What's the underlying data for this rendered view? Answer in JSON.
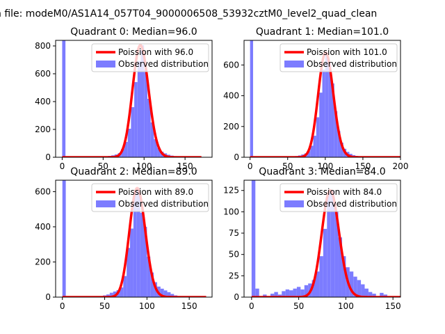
{
  "figure": {
    "suptitle": "n file: modeM0/AS1A14_057T04_9000006508_53932cztM0_level2_quad_clean"
  },
  "colors": {
    "hist": "#7c7cff",
    "poisson": "#ff0000"
  },
  "chart_data": [
    {
      "type": "bar",
      "title": "Quadrant 0: Median=96.0",
      "median": 96.0,
      "poisson_mean": 96.0,
      "x_ticks": [
        0,
        50,
        100,
        150
      ],
      "y_ticks": [
        0,
        200,
        400,
        600,
        800
      ],
      "xlim": [
        -8,
        183
      ],
      "ylim": [
        0,
        840
      ],
      "bin_width": 4,
      "bins": [
        [
          0,
          840
        ],
        [
          52,
          6
        ],
        [
          56,
          10
        ],
        [
          60,
          14
        ],
        [
          64,
          20
        ],
        [
          68,
          30
        ],
        [
          72,
          60
        ],
        [
          76,
          110
        ],
        [
          80,
          205
        ],
        [
          84,
          360
        ],
        [
          88,
          540
        ],
        [
          92,
          690
        ],
        [
          96,
          805
        ],
        [
          100,
          630
        ],
        [
          104,
          420
        ],
        [
          108,
          250
        ],
        [
          112,
          130
        ],
        [
          116,
          68
        ],
        [
          120,
          40
        ],
        [
          124,
          28
        ],
        [
          128,
          18
        ],
        [
          132,
          12
        ],
        [
          136,
          8
        ],
        [
          140,
          5
        ],
        [
          144,
          3
        ]
      ],
      "series": [
        {
          "name": "Poission with 96.0",
          "kind": "line"
        },
        {
          "name": "Observed distribution",
          "kind": "bar"
        }
      ],
      "legend": "top-right"
    },
    {
      "type": "bar",
      "title": "Quadrant 1: Median=101.0",
      "median": 101.0,
      "poisson_mean": 101.0,
      "x_ticks": [
        0,
        50,
        100,
        150,
        200
      ],
      "y_ticks": [
        0,
        200,
        400,
        600
      ],
      "xlim": [
        -8,
        200
      ],
      "ylim": [
        0,
        760
      ],
      "bin_width": 4,
      "bins": [
        [
          0,
          760
        ],
        [
          56,
          5
        ],
        [
          60,
          8
        ],
        [
          64,
          12
        ],
        [
          68,
          18
        ],
        [
          72,
          25
        ],
        [
          76,
          40
        ],
        [
          80,
          75
        ],
        [
          84,
          140
        ],
        [
          88,
          260
        ],
        [
          92,
          420
        ],
        [
          96,
          570
        ],
        [
          100,
          680
        ],
        [
          104,
          610
        ],
        [
          108,
          480
        ],
        [
          112,
          300
        ],
        [
          116,
          170
        ],
        [
          120,
          95
        ],
        [
          124,
          55
        ],
        [
          128,
          35
        ],
        [
          132,
          22
        ],
        [
          136,
          14
        ],
        [
          140,
          9
        ],
        [
          144,
          5
        ],
        [
          148,
          3
        ]
      ],
      "series": [
        {
          "name": "Poission with 101.0",
          "kind": "line"
        },
        {
          "name": "Observed distribution",
          "kind": "bar"
        }
      ],
      "legend": "top-right"
    },
    {
      "type": "bar",
      "title": "Quadrant 2: Median=89.0",
      "median": 89.0,
      "poisson_mean": 89.0,
      "x_ticks": [
        0,
        50,
        100,
        150
      ],
      "y_ticks": [
        0,
        200,
        400,
        600
      ],
      "xlim": [
        -8,
        177
      ],
      "ylim": [
        0,
        665
      ],
      "bin_width": 4,
      "bins": [
        [
          0,
          665
        ],
        [
          48,
          10
        ],
        [
          52,
          15
        ],
        [
          56,
          25
        ],
        [
          60,
          32
        ],
        [
          64,
          40
        ],
        [
          68,
          55
        ],
        [
          72,
          120
        ],
        [
          76,
          280
        ],
        [
          80,
          390
        ],
        [
          84,
          600
        ],
        [
          88,
          620
        ],
        [
          92,
          480
        ],
        [
          96,
          400
        ],
        [
          100,
          230
        ],
        [
          104,
          140
        ],
        [
          108,
          85
        ],
        [
          112,
          60
        ],
        [
          116,
          48
        ],
        [
          120,
          38
        ],
        [
          124,
          28
        ],
        [
          128,
          18
        ],
        [
          132,
          10
        ],
        [
          136,
          6
        ],
        [
          140,
          4
        ]
      ],
      "series": [
        {
          "name": "Poission with 89.0",
          "kind": "line"
        },
        {
          "name": "Observed distribution",
          "kind": "bar"
        }
      ],
      "legend": "top-right"
    },
    {
      "type": "bar",
      "title": "Quadrant 3: Median=84.0",
      "median": 84.0,
      "poisson_mean": 84.0,
      "x_ticks": [
        0,
        50,
        100,
        150
      ],
      "y_ticks": [
        0,
        25,
        50,
        75,
        100,
        125
      ],
      "xlim": [
        -8,
        158
      ],
      "ylim": [
        0,
        137
      ],
      "bin_width": 4,
      "bins": [
        [
          0,
          137
        ],
        [
          4,
          10
        ],
        [
          12,
          3
        ],
        [
          20,
          4
        ],
        [
          24,
          6
        ],
        [
          28,
          3
        ],
        [
          32,
          7
        ],
        [
          36,
          9
        ],
        [
          40,
          8
        ],
        [
          44,
          10
        ],
        [
          48,
          12
        ],
        [
          52,
          9
        ],
        [
          56,
          14
        ],
        [
          60,
          16
        ],
        [
          64,
          20
        ],
        [
          68,
          30
        ],
        [
          72,
          48
        ],
        [
          76,
          80
        ],
        [
          80,
          122
        ],
        [
          84,
          125
        ],
        [
          88,
          100
        ],
        [
          92,
          70
        ],
        [
          96,
          48
        ],
        [
          100,
          35
        ],
        [
          104,
          30
        ],
        [
          108,
          24
        ],
        [
          112,
          20
        ],
        [
          116,
          15
        ],
        [
          120,
          10
        ],
        [
          124,
          6
        ],
        [
          128,
          4
        ],
        [
          136,
          5
        ],
        [
          140,
          3
        ]
      ],
      "series": [
        {
          "name": "Poission with 84.0",
          "kind": "line"
        },
        {
          "name": "Observed distribution",
          "kind": "bar"
        }
      ],
      "legend": "top-right"
    }
  ]
}
